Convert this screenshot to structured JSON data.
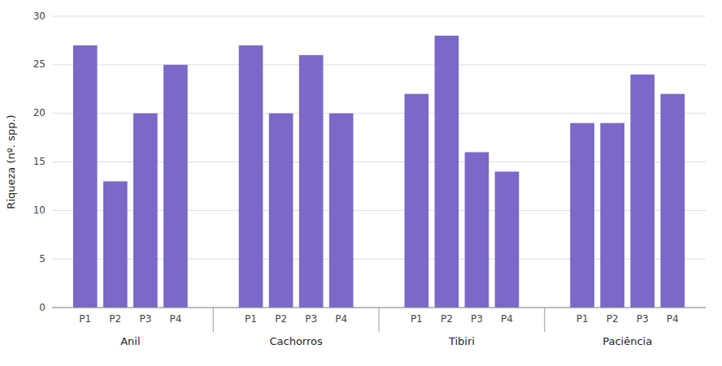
{
  "chart_data": {
    "type": "bar",
    "ylabel": "Riqueza (nº. spp.)",
    "categories": [
      "P1",
      "P2",
      "P3",
      "P4"
    ],
    "series": [
      {
        "name": "Anil",
        "values": [
          27,
          13,
          20,
          25
        ]
      },
      {
        "name": "Cachorros",
        "values": [
          27,
          20,
          26,
          20
        ]
      },
      {
        "name": "Tibiri",
        "values": [
          22,
          28,
          16,
          14
        ]
      },
      {
        "name": "Paciência",
        "values": [
          19,
          19,
          24,
          22
        ]
      }
    ],
    "color": "#7B68C8",
    "ylim": [
      0,
      30
    ],
    "yticks": [
      0,
      5,
      10,
      15,
      20,
      25,
      30
    ],
    "grid": true
  }
}
